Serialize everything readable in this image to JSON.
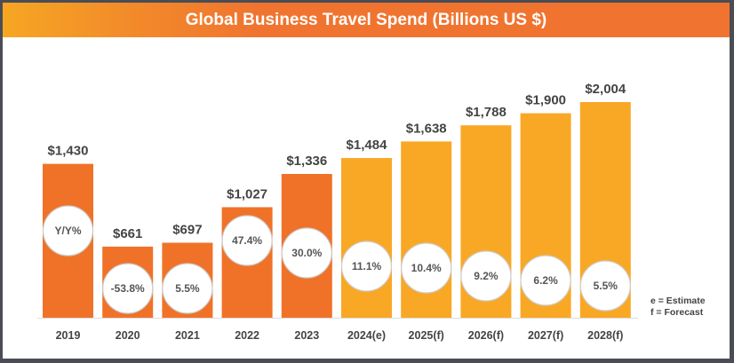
{
  "chart_data": {
    "type": "bar",
    "title": "Global Business Travel Spend (Billions US $)",
    "categories": [
      "2019",
      "2020",
      "2021",
      "2022",
      "2023",
      "2024(e)",
      "2025(f)",
      "2026(f)",
      "2027(f)",
      "2028(f)"
    ],
    "values": [
      1430,
      661,
      697,
      1027,
      1336,
      1484,
      1638,
      1788,
      1900,
      2004
    ],
    "value_labels": [
      "$1,430",
      "$661",
      "$697",
      "$1,027",
      "$1,336",
      "$1,484",
      "$1,638",
      "$1,788",
      "$1,900",
      "$2,004"
    ],
    "yoy_labels": [
      "Y/Y%",
      "-53.8%",
      "5.5%",
      "47.4%",
      "30.0%",
      "11.1%",
      "10.4%",
      "9.2%",
      "6.2%",
      "5.5%"
    ],
    "bar_kind": [
      "actual",
      "actual",
      "actual",
      "actual",
      "actual",
      "projected",
      "projected",
      "projected",
      "projected",
      "projected"
    ],
    "colors": {
      "actual": "#f07228",
      "projected": "#f9a825"
    },
    "legend": [
      "e = Estimate",
      "f = Forecast"
    ],
    "ylim": [
      0,
      2004
    ],
    "grid": false
  }
}
